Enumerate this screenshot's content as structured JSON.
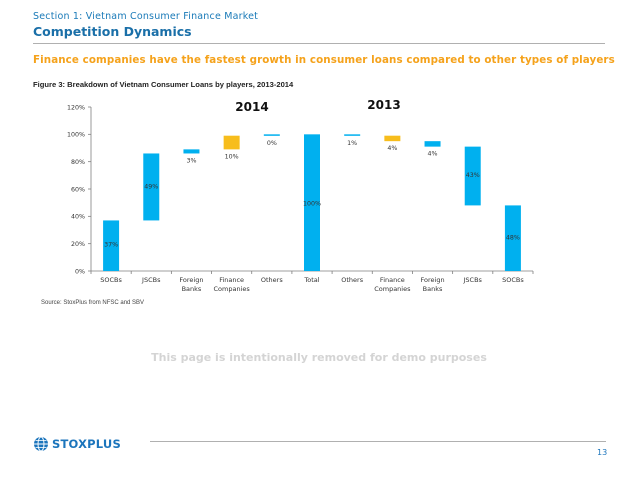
{
  "header": {
    "section": "Section 1: Vietnam Consumer Finance Market",
    "title": "Competition Dynamics",
    "headline": "Finance companies have the fastest growth in consumer loans compared to other types of players"
  },
  "figure": {
    "title": "Figure 3: Breakdown of Vietnam Consumer Loans by players, 2013-2014"
  },
  "chart_data": {
    "type": "bar",
    "subtype": "waterfall",
    "period_labels": [
      "2014",
      "2013"
    ],
    "categories": [
      "SOCBs",
      "JSCBs",
      "Foreign Banks",
      "Finance Companies",
      "Others",
      "Total",
      "Others",
      "Finance Companies",
      "Foreign Banks",
      "JSCBs",
      "SOCBs"
    ],
    "bars": [
      {
        "category": "SOCBs",
        "start": 0,
        "end": 37,
        "label": "37%",
        "color": "#00b0ef"
      },
      {
        "category": "JSCBs",
        "start": 37,
        "end": 86,
        "label": "49%",
        "color": "#00b0ef"
      },
      {
        "category": "Foreign Banks",
        "start": 86,
        "end": 89,
        "label": "3%",
        "color": "#00b0ef"
      },
      {
        "category": "Finance Companies",
        "start": 89,
        "end": 99,
        "label": "10%",
        "color": "#f7bd1c"
      },
      {
        "category": "Others",
        "start": 99,
        "end": 100,
        "label": "0%",
        "color": "#00b0ef"
      },
      {
        "category": "Total",
        "start": 0,
        "end": 100,
        "label": "100%",
        "color": "#00b0ef"
      },
      {
        "category": "Others",
        "start": 99,
        "end": 100,
        "label": "1%",
        "color": "#00b0ef"
      },
      {
        "category": "Finance Companies",
        "start": 95,
        "end": 99,
        "label": "4%",
        "color": "#f7bd1c"
      },
      {
        "category": "Foreign Banks",
        "start": 91,
        "end": 95,
        "label": "4%",
        "color": "#00b0ef"
      },
      {
        "category": "JSCBs",
        "start": 48,
        "end": 91,
        "label": "43%",
        "color": "#00b0ef"
      },
      {
        "category": "SOCBs",
        "start": 0,
        "end": 48,
        "label": "48%",
        "color": "#00b0ef"
      }
    ],
    "yticks": [
      "0%",
      "20%",
      "40%",
      "60%",
      "80%",
      "100%",
      "120%"
    ],
    "ylim": [
      0,
      120
    ],
    "xlabel": "",
    "ylabel": "",
    "grid": false
  },
  "source": "Source: StoxPlus from NFSC and SBV",
  "demo_note": "This page is intentionally removed for demo purposes",
  "footer": {
    "logo": "STOXPLUS",
    "page_number": "13"
  },
  "colors": {
    "primary": "#00b0ef",
    "accent": "#f7bd1c",
    "title_blue": "#1a6fa8",
    "headline_orange": "#f5a21b"
  }
}
